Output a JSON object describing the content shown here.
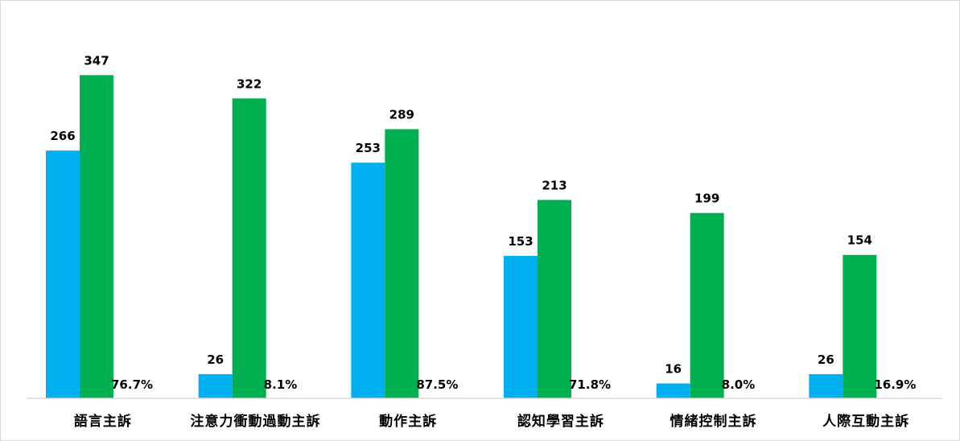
{
  "chart_data": {
    "type": "bar",
    "categories": [
      "語言主訴",
      "注意力衝動過動主訴",
      "動作主訴",
      "認知學習主訴",
      "情緒控制主訴",
      "人際互動主訴"
    ],
    "series": [
      {
        "values": [
          266,
          26,
          253,
          153,
          16,
          26
        ],
        "color": "#00b0f0"
      },
      {
        "values": [
          347,
          322,
          289,
          213,
          199,
          154
        ],
        "color": "#00b050"
      }
    ],
    "percent_labels": [
      "76.7%",
      "8.1%",
      "87.5%",
      "71.8%",
      "8.0%",
      "16.9%"
    ],
    "ylim": [
      0,
      400
    ],
    "grid": false,
    "legend": "none",
    "title": "",
    "xlabel": "",
    "ylabel": ""
  }
}
